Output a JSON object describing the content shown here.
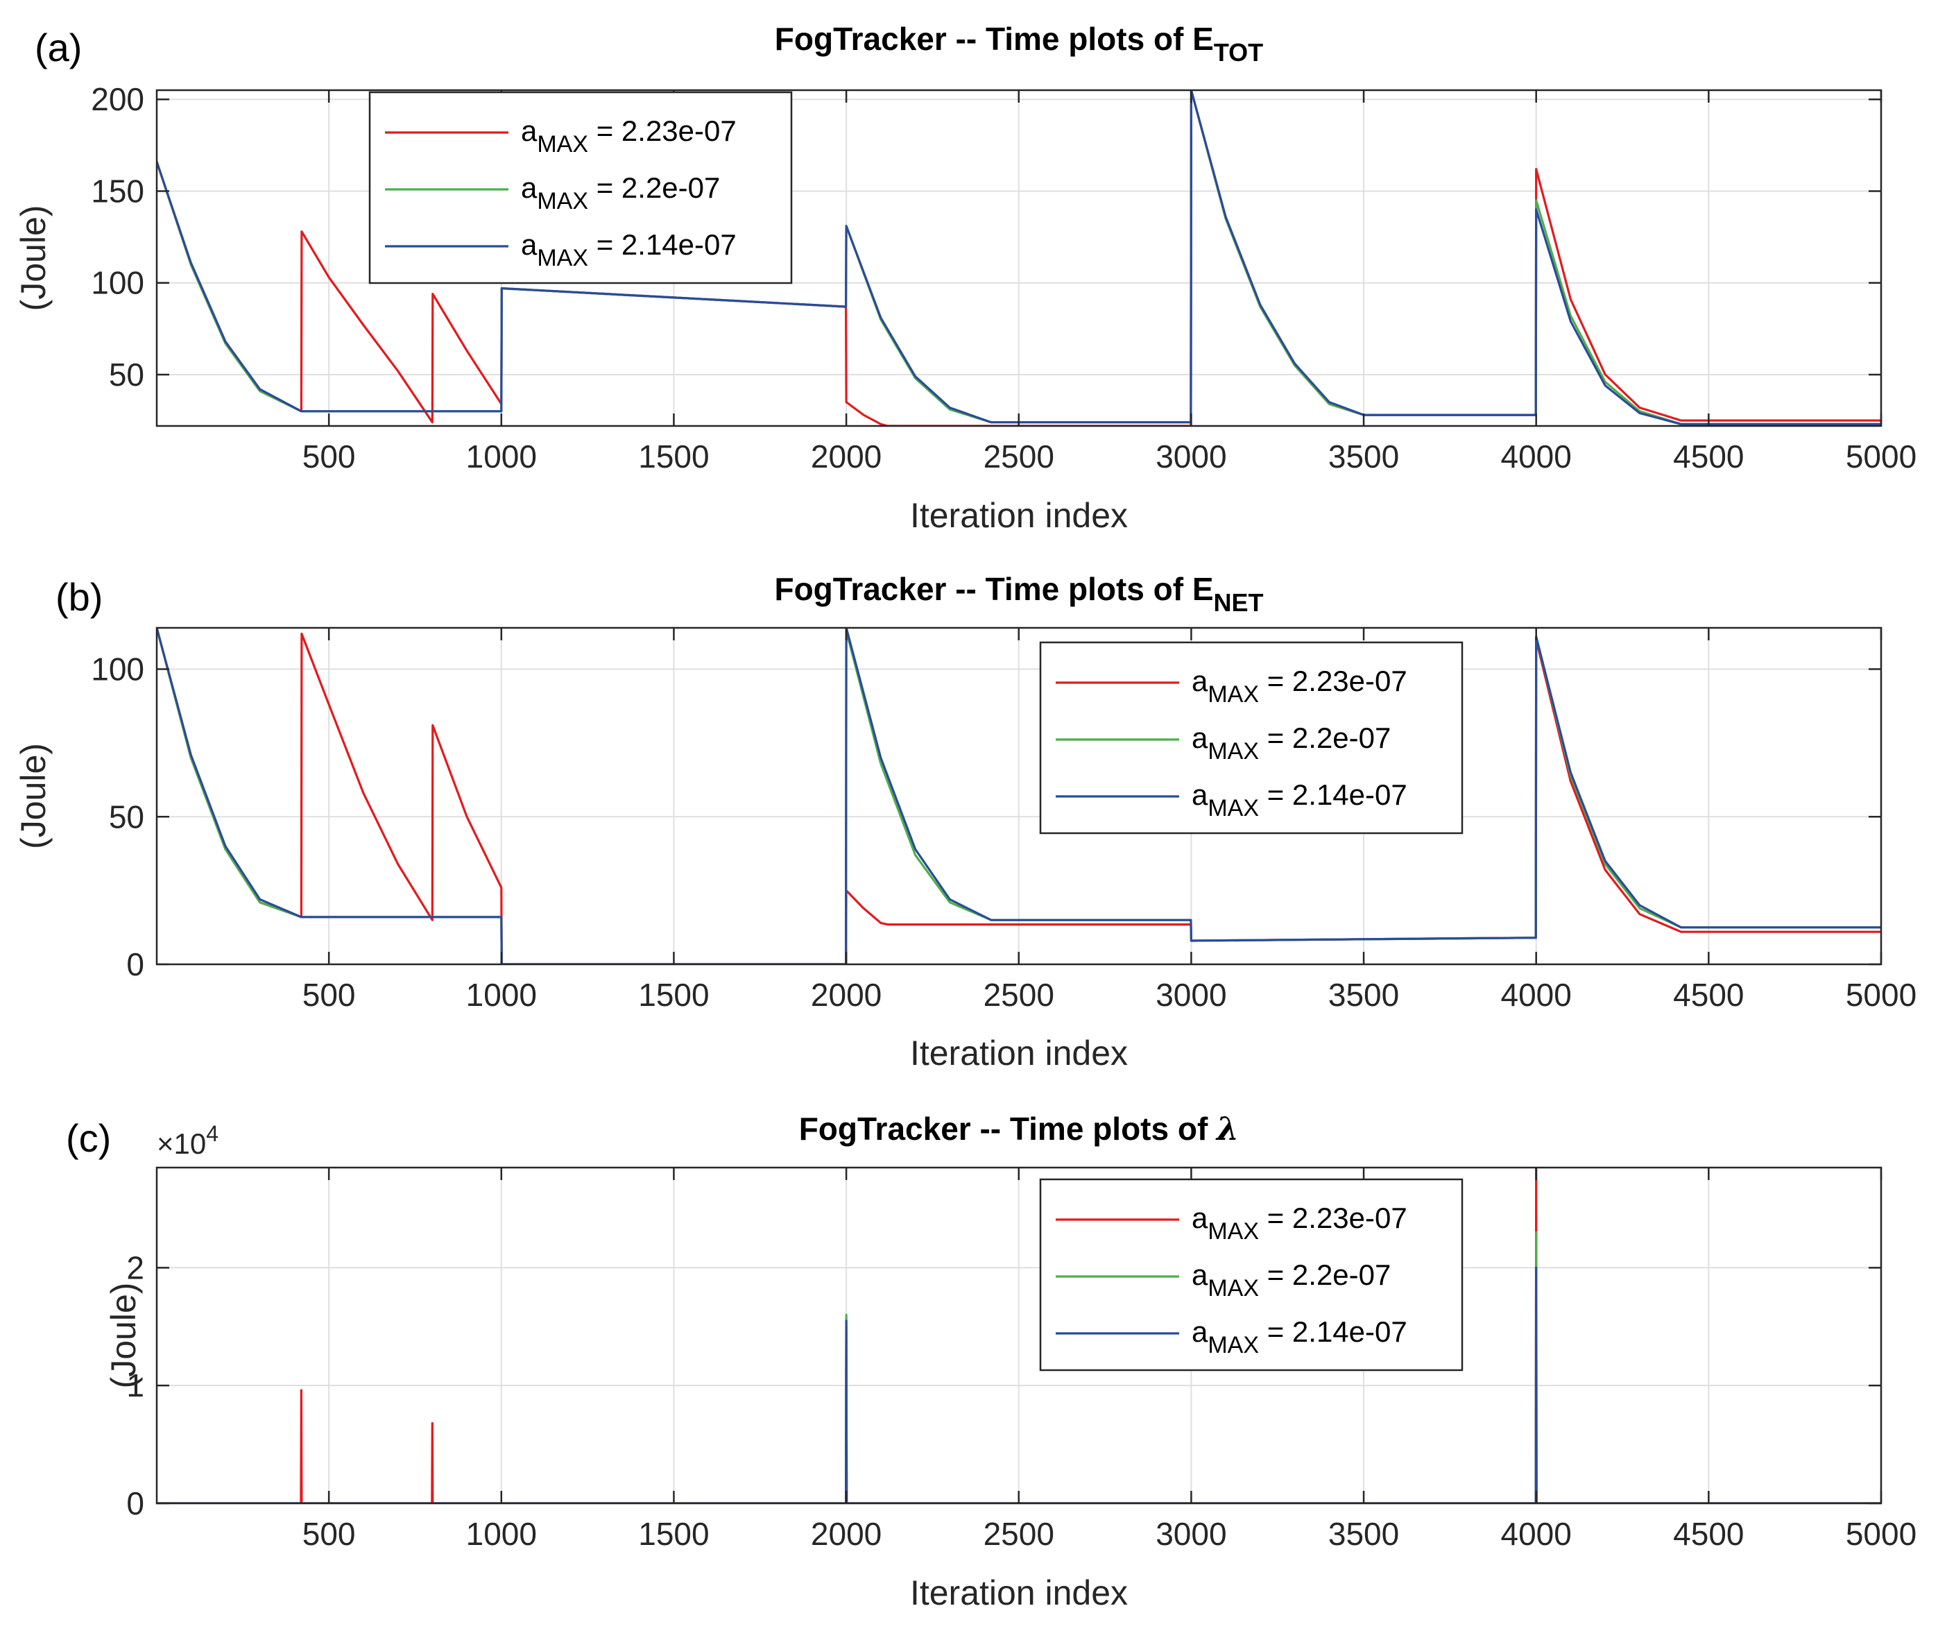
{
  "chart_data": [
    {
      "type": "line",
      "panel_label": "(a)",
      "title": "FogTracker -- Time plots of E",
      "title_sub": "TOT",
      "xlabel": "Iteration index",
      "ylabel": "(Joule)",
      "xlim": [
        1,
        5000
      ],
      "ylim": [
        22,
        205
      ],
      "xticks": [
        500,
        1000,
        1500,
        2000,
        2500,
        3000,
        3500,
        4000,
        4500,
        5000
      ],
      "yticks": [
        50,
        100,
        150,
        200
      ],
      "grid": true,
      "legend_position": "top-left",
      "series": [
        {
          "name": "a_MAX = 2.23e-07",
          "label_main": "a",
          "label_sub": "MAX",
          "label_tail": " = 2.23e-07",
          "color": "#e41a1c",
          "x": [
            1,
            100,
            200,
            300,
            420,
            421,
            500,
            600,
            700,
            800,
            801,
            900,
            1000,
            1001,
            1500,
            1999,
            2000,
            2050,
            2100,
            2120,
            2500,
            2999,
            3000,
            3100,
            3200,
            3300,
            3400,
            3500,
            3999,
            4000,
            4100,
            4200,
            4300,
            4420,
            4500,
            5000
          ],
          "y": [
            166,
            110,
            67,
            41,
            30,
            128,
            103,
            77,
            52,
            24,
            94,
            63,
            34,
            97,
            92,
            87,
            35,
            28,
            23,
            22,
            22,
            22,
            205,
            135,
            87,
            55,
            34,
            28,
            28,
            162,
            91,
            50,
            32,
            25,
            25,
            25
          ]
        },
        {
          "name": "a_MAX = 2.2e-07",
          "label_main": "a",
          "label_sub": "MAX",
          "label_tail": " = 2.2e-07",
          "color": "#4daf4a",
          "x": [
            1,
            100,
            200,
            300,
            420,
            500,
            800,
            1000,
            1001,
            1500,
            1999,
            2000,
            2100,
            2200,
            2300,
            2420,
            2500,
            2999,
            3000,
            3100,
            3200,
            3300,
            3400,
            3500,
            3999,
            4000,
            4100,
            4200,
            4300,
            4420,
            4500,
            5000
          ],
          "y": [
            166,
            110,
            67,
            41,
            30,
            30,
            30,
            30,
            97,
            92,
            87,
            131,
            80,
            48,
            31,
            24,
            24,
            24,
            205,
            135,
            87,
            55,
            34,
            28,
            28,
            145,
            82,
            46,
            30,
            23,
            23,
            23
          ]
        },
        {
          "name": "a_MAX = 2.14e-07",
          "label_main": "a",
          "label_sub": "MAX",
          "label_tail": " = 2.14e-07",
          "color": "#2a4b9b",
          "x": [
            1,
            100,
            200,
            300,
            420,
            500,
            800,
            1000,
            1001,
            1500,
            1999,
            2000,
            2100,
            2200,
            2300,
            2420,
            2500,
            2999,
            3000,
            3100,
            3200,
            3300,
            3400,
            3500,
            3999,
            4000,
            4100,
            4200,
            4300,
            4420,
            4500,
            5000
          ],
          "y": [
            166,
            111,
            68,
            42,
            30,
            30,
            30,
            30,
            97,
            92,
            87,
            131,
            81,
            49,
            32,
            24,
            24,
            24,
            205,
            136,
            88,
            56,
            35,
            28,
            28,
            140,
            79,
            44,
            29,
            23,
            23,
            23
          ]
        }
      ]
    },
    {
      "type": "line",
      "panel_label": "(b)",
      "title": "FogTracker -- Time plots of E",
      "title_sub": "NET",
      "xlabel": "Iteration index",
      "ylabel": "(Joule)",
      "xlim": [
        1,
        5000
      ],
      "ylim": [
        0,
        114
      ],
      "xticks": [
        500,
        1000,
        1500,
        2000,
        2500,
        3000,
        3500,
        4000,
        4500,
        5000
      ],
      "yticks": [
        0,
        50,
        100
      ],
      "grid": true,
      "legend_position": "top-right",
      "series": [
        {
          "name": "a_MAX = 2.23e-07",
          "label_main": "a",
          "label_sub": "MAX",
          "label_tail": " = 2.23e-07",
          "color": "#e41a1c",
          "x": [
            1,
            100,
            200,
            300,
            420,
            421,
            500,
            600,
            700,
            800,
            801,
            900,
            1000,
            1001,
            1500,
            1999,
            2000,
            2050,
            2100,
            2120,
            2500,
            2999,
            3000,
            3500,
            3999,
            4000,
            4100,
            4200,
            4300,
            4420,
            4500,
            5000
          ],
          "y": [
            114,
            70,
            39,
            21,
            16,
            112,
            88,
            58,
            34,
            15,
            81,
            50,
            26,
            0,
            0,
            0,
            25,
            19,
            14,
            13.5,
            13.5,
            13.5,
            8,
            8.5,
            9,
            110,
            62,
            32,
            17,
            11,
            11,
            11
          ]
        },
        {
          "name": "a_MAX = 2.2e-07",
          "label_main": "a",
          "label_sub": "MAX",
          "label_tail": " = 2.2e-07",
          "color": "#4daf4a",
          "x": [
            1,
            100,
            200,
            300,
            420,
            500,
            800,
            1000,
            1001,
            1500,
            1999,
            2000,
            2100,
            2200,
            2300,
            2420,
            2500,
            2999,
            3000,
            3500,
            3999,
            4000,
            4100,
            4200,
            4300,
            4420,
            4500,
            5000
          ],
          "y": [
            114,
            70,
            39,
            21,
            16,
            16,
            16,
            16,
            0,
            0,
            0,
            113,
            68,
            37,
            21,
            15,
            15,
            15,
            8,
            8.5,
            9,
            111,
            64,
            34,
            19,
            12.5,
            12.5,
            12.5
          ]
        },
        {
          "name": "a_MAX = 2.14e-07",
          "label_main": "a",
          "label_sub": "MAX",
          "label_tail": " = 2.14e-07",
          "color": "#2a4b9b",
          "x": [
            1,
            100,
            200,
            300,
            420,
            500,
            800,
            1000,
            1001,
            1500,
            1999,
            2000,
            2100,
            2200,
            2300,
            2420,
            2500,
            2999,
            3000,
            3500,
            3999,
            4000,
            4100,
            4200,
            4300,
            4420,
            4500,
            5000
          ],
          "y": [
            114,
            71,
            40,
            22,
            16,
            16,
            16,
            16,
            0,
            0,
            0,
            114,
            70,
            39,
            22,
            15,
            15,
            15,
            8,
            8.5,
            9,
            111,
            65,
            35,
            20,
            12.5,
            12.5,
            12.5
          ]
        }
      ]
    },
    {
      "type": "line",
      "panel_label": "(c)",
      "title": "FogTracker -- Time plots of ",
      "title_symbol": "λ",
      "exponent_label": "×10",
      "exponent_power": "4",
      "xlabel": "Iteration index",
      "ylabel": "(Joule)",
      "xlim": [
        1,
        5000
      ],
      "ylim": [
        0,
        2.85
      ],
      "ytick_labels": [
        "0",
        "1",
        "2"
      ],
      "xticks": [
        500,
        1000,
        1500,
        2000,
        2500,
        3000,
        3500,
        4000,
        4500,
        5000
      ],
      "yticks": [
        0,
        1,
        2
      ],
      "grid": true,
      "legend_position": "top-right",
      "series": [
        {
          "name": "a_MAX = 2.23e-07",
          "label_main": "a",
          "label_sub": "MAX",
          "label_tail": " = 2.23e-07",
          "color": "#e41a1c",
          "x": [
            1,
            419,
            420,
            421,
            799,
            800,
            801,
            1999,
            2000,
            2001,
            3999,
            4000,
            4001,
            5000
          ],
          "y": [
            0,
            0,
            0.96,
            0,
            0,
            0.68,
            0,
            0,
            1.5,
            0,
            0,
            2.85,
            0,
            0
          ]
        },
        {
          "name": "a_MAX = 2.2e-07",
          "label_main": "a",
          "label_sub": "MAX",
          "label_tail": " = 2.2e-07",
          "color": "#4daf4a",
          "x": [
            1,
            1999,
            2000,
            2001,
            3999,
            4000,
            4001,
            5000
          ],
          "y": [
            0,
            0,
            1.6,
            0,
            0,
            2.3,
            0,
            0
          ]
        },
        {
          "name": "a_MAX = 2.14e-07",
          "label_main": "a",
          "label_sub": "MAX",
          "label_tail": " = 2.14e-07",
          "color": "#2a4b9b",
          "x": [
            1,
            1999,
            2000,
            2001,
            3999,
            4000,
            4001,
            5000
          ],
          "y": [
            0,
            0,
            1.55,
            0,
            0,
            2.0,
            0,
            0
          ]
        }
      ]
    }
  ]
}
